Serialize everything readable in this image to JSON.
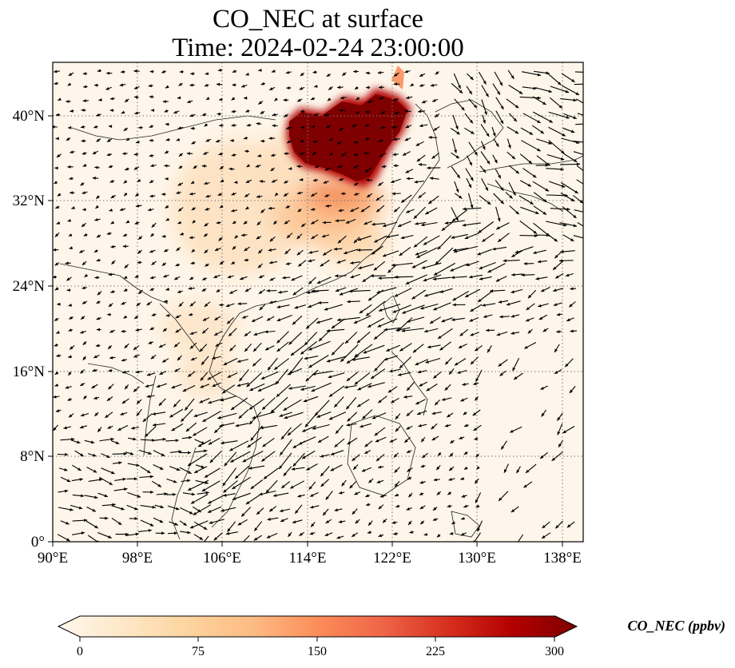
{
  "title": {
    "line1": "CO_NEC at surface",
    "line2": "Time: 2024-02-24 23:00:00"
  },
  "axes": {
    "lon_ticks": [
      "90°E",
      "98°E",
      "106°E",
      "114°E",
      "122°E",
      "130°E",
      "138°E"
    ],
    "lat_ticks": [
      "0°",
      "8°N",
      "16°N",
      "24°N",
      "32°N",
      "40°N"
    ],
    "lon_range": [
      90,
      140
    ],
    "lat_range": [
      0,
      45
    ],
    "lon_tick_values": [
      90,
      98,
      106,
      114,
      122,
      130,
      138
    ],
    "lat_tick_values": [
      0,
      8,
      16,
      24,
      32,
      40
    ],
    "grid": "dotted"
  },
  "colorbar": {
    "label": "CO_NEC (ppbv)",
    "ticks": [
      "0",
      "75",
      "150",
      "225",
      "300"
    ],
    "tick_values": [
      0,
      75,
      150,
      225,
      300
    ],
    "range": [
      0,
      300
    ],
    "extend": "both",
    "colormap": "OrRd",
    "colors": [
      "#fff7ec",
      "#fee8c8",
      "#fdd49e",
      "#fdbb84",
      "#fc8d59",
      "#ef6548",
      "#d7301f",
      "#b30000",
      "#7f0000"
    ]
  },
  "overlay": {
    "wind_vectors": "black arrows",
    "coastlines": "black"
  },
  "colors": {
    "background_field": "#fef6ea",
    "high_concentration": "#7f0000",
    "arrow": "#000000"
  }
}
